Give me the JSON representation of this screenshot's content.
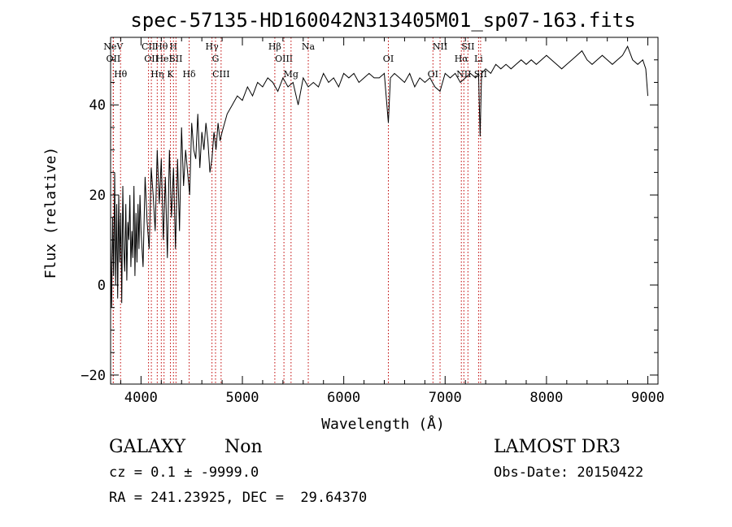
{
  "chart_data": {
    "type": "line",
    "title": "spec-57135-HD160042N313405M01_sp07-163.fits",
    "xlabel": "Wavelength (Å)",
    "ylabel": "Flux (relative)",
    "xlim": [
      3700,
      9100
    ],
    "ylim": [
      -22,
      55
    ],
    "xticks": [
      4000,
      5000,
      6000,
      7000,
      8000,
      9000
    ],
    "yticks": [
      -20,
      0,
      20,
      40
    ],
    "series": [
      {
        "name": "flux",
        "x": [
          3700,
          3710,
          3720,
          3730,
          3740,
          3750,
          3760,
          3770,
          3780,
          3790,
          3800,
          3810,
          3820,
          3830,
          3840,
          3850,
          3860,
          3870,
          3880,
          3890,
          3900,
          3910,
          3920,
          3930,
          3940,
          3950,
          3960,
          3970,
          3980,
          3990,
          4000,
          4020,
          4040,
          4060,
          4080,
          4100,
          4120,
          4140,
          4160,
          4180,
          4200,
          4220,
          4240,
          4260,
          4280,
          4300,
          4320,
          4340,
          4360,
          4380,
          4400,
          4420,
          4440,
          4460,
          4480,
          4500,
          4520,
          4540,
          4560,
          4580,
          4600,
          4620,
          4640,
          4660,
          4680,
          4700,
          4720,
          4740,
          4760,
          4780,
          4800,
          4850,
          4900,
          4950,
          5000,
          5050,
          5100,
          5150,
          5200,
          5250,
          5300,
          5350,
          5400,
          5450,
          5500,
          5550,
          5600,
          5650,
          5700,
          5750,
          5800,
          5850,
          5900,
          5950,
          6000,
          6050,
          6100,
          6150,
          6200,
          6250,
          6300,
          6350,
          6400,
          6440,
          6460,
          6500,
          6550,
          6600,
          6650,
          6700,
          6750,
          6800,
          6850,
          6900,
          6950,
          7000,
          7050,
          7100,
          7150,
          7200,
          7250,
          7300,
          7330,
          7345,
          7360,
          7400,
          7450,
          7500,
          7550,
          7600,
          7650,
          7700,
          7750,
          7800,
          7850,
          7900,
          7950,
          8000,
          8050,
          8100,
          8150,
          8200,
          8250,
          8300,
          8350,
          8400,
          8450,
          8500,
          8550,
          8600,
          8650,
          8700,
          8750,
          8800,
          8850,
          8900,
          8950,
          8980,
          9000
        ],
        "y": [
          10,
          -5,
          15,
          2,
          25,
          0,
          18,
          -3,
          20,
          5,
          16,
          -4,
          22,
          8,
          3,
          18,
          1,
          14,
          10,
          20,
          4,
          12,
          6,
          22,
          2,
          16,
          5,
          18,
          8,
          20,
          12,
          4,
          24,
          14,
          8,
          26,
          20,
          12,
          30,
          18,
          28,
          10,
          24,
          6,
          30,
          15,
          26,
          8,
          28,
          12,
          35,
          22,
          30,
          25,
          20,
          36,
          30,
          28,
          38,
          26,
          34,
          30,
          36,
          32,
          25,
          28,
          34,
          30,
          36,
          32,
          34,
          38,
          40,
          42,
          41,
          44,
          42,
          45,
          44,
          46,
          45,
          43,
          46,
          44,
          45,
          40,
          46,
          44,
          45,
          44,
          47,
          45,
          46,
          44,
          47,
          46,
          47,
          45,
          46,
          47,
          46,
          46,
          47,
          36,
          46,
          47,
          46,
          45,
          47,
          44,
          46,
          45,
          46,
          44,
          43,
          47,
          46,
          47,
          45,
          46,
          47,
          46,
          47,
          33,
          47,
          48,
          47,
          49,
          48,
          49,
          48,
          49,
          50,
          49,
          50,
          49,
          50,
          51,
          50,
          49,
          48,
          49,
          50,
          51,
          52,
          50,
          49,
          50,
          51,
          50,
          49,
          50,
          51,
          53,
          50,
          49,
          50,
          48,
          42
        ]
      }
    ],
    "lines": [
      {
        "label": "NeV",
        "x": 3726
      },
      {
        "label": "OII",
        "x": 3727
      },
      {
        "label": "Hθ",
        "x": 3798
      },
      {
        "label": "CII",
        "x": 4074
      },
      {
        "label": "OII",
        "x": 4102
      },
      {
        "label": "Hη",
        "x": 4160
      },
      {
        "label": "Hθ",
        "x": 4200
      },
      {
        "label": "HeI",
        "x": 4227
      },
      {
        "label": "K",
        "x": 4290
      },
      {
        "label": "H",
        "x": 4320
      },
      {
        "label": "SII",
        "x": 4345
      },
      {
        "label": "Hδ",
        "x": 4475
      },
      {
        "label": "Hγ",
        "x": 4700
      },
      {
        "label": "G",
        "x": 4735
      },
      {
        "label": "CIII",
        "x": 4790
      },
      {
        "label": "Hβ",
        "x": 5320
      },
      {
        "label": "OIII",
        "x": 5410
      },
      {
        "label": "Mg",
        "x": 5480
      },
      {
        "label": "Na",
        "x": 5650
      },
      {
        "label": "OI",
        "x": 6440
      },
      {
        "label": "OI",
        "x": 6880
      },
      {
        "label": "NII",
        "x": 6950
      },
      {
        "label": "Hα",
        "x": 7160
      },
      {
        "label": "NII",
        "x": 7185
      },
      {
        "label": "SII",
        "x": 7225
      },
      {
        "label": "Li",
        "x": 7330
      },
      {
        "label": "SII",
        "x": 7350
      }
    ]
  },
  "footer": {
    "class_label": "GALAXY",
    "subclass_label": "Non",
    "survey_label": "LAMOST DR3",
    "cz_text": "cz = 0.1 ± -9999.0",
    "obs_date_text": "Obs-Date: 20150422",
    "coords_text": "RA = 241.23925, DEC =  29.64370"
  }
}
